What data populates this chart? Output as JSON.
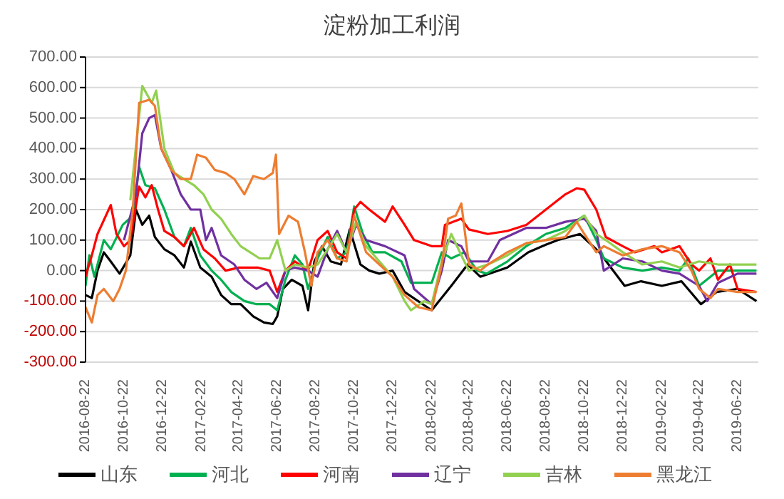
{
  "chart_data": {
    "type": "line",
    "title": "淀粉加工利润",
    "xlim": [
      "2016-08-22",
      "2019-07-25"
    ],
    "xticks": [
      "2016-08-22",
      "2016-10-22",
      "2016-12-22",
      "2017-02-22",
      "2017-04-22",
      "2017-06-22",
      "2017-08-22",
      "2017-10-22",
      "2017-12-22",
      "2018-02-22",
      "2018-04-22",
      "2018-06-22",
      "2018-08-22",
      "2018-10-22",
      "2018-12-22",
      "2019-02-22",
      "2019-04-22",
      "2019-06-22"
    ],
    "ylim": [
      -300,
      700
    ],
    "yticks": [
      {
        "value": -300,
        "label": "-300.00"
      },
      {
        "value": -200,
        "label": "-200.00"
      },
      {
        "value": -100,
        "label": "-100.00"
      },
      {
        "value": 0,
        "label": "0.00"
      },
      {
        "value": 100,
        "label": "100.00"
      },
      {
        "value": 200,
        "label": "200.00"
      },
      {
        "value": 300,
        "label": "300.00"
      },
      {
        "value": 400,
        "label": "400.00"
      },
      {
        "value": 500,
        "label": "500.00"
      },
      {
        "value": 600,
        "label": "600.00"
      },
      {
        "value": 700,
        "label": "700.00"
      }
    ],
    "grid": "y",
    "legend": "bottom",
    "line_style": "solid",
    "marker": "none",
    "series": [
      {
        "name": "山东",
        "color": "#000000",
        "x": [
          "2016-08-22",
          "2016-09-01",
          "2016-09-10",
          "2016-09-20",
          "2016-10-01",
          "2016-10-15",
          "2016-11-01",
          "2016-11-10",
          "2016-11-20",
          "2016-12-01",
          "2016-12-10",
          "2016-12-25",
          "2017-01-10",
          "2017-01-25",
          "2017-02-05",
          "2017-02-20",
          "2017-03-10",
          "2017-03-25",
          "2017-04-10",
          "2017-04-25",
          "2017-05-15",
          "2017-06-01",
          "2017-06-15",
          "2017-06-22",
          "2017-07-01",
          "2017-07-15",
          "2017-08-01",
          "2017-08-10",
          "2017-08-20",
          "2017-09-01",
          "2017-09-15",
          "2017-10-01",
          "2017-10-15",
          "2017-11-01",
          "2017-11-15",
          "2017-12-01",
          "2017-12-22",
          "2018-01-10",
          "2018-02-22",
          "2018-03-25",
          "2018-04-20",
          "2018-05-10",
          "2018-06-22",
          "2018-07-25",
          "2018-08-22",
          "2018-09-10",
          "2018-10-15",
          "2018-11-15",
          "2018-12-05",
          "2018-12-25",
          "2019-01-20",
          "2019-02-22",
          "2019-03-25",
          "2019-04-25",
          "2019-05-20",
          "2019-06-22",
          "2019-07-22"
        ],
        "values": [
          -80,
          -90,
          0,
          60,
          30,
          -10,
          50,
          200,
          150,
          180,
          110,
          70,
          50,
          10,
          95,
          10,
          -20,
          -80,
          -110,
          -110,
          -150,
          -170,
          -175,
          -150,
          -60,
          -30,
          -50,
          -130,
          30,
          80,
          30,
          20,
          135,
          20,
          0,
          -10,
          0,
          -70,
          -130,
          -50,
          20,
          -20,
          10,
          60,
          85,
          100,
          120,
          60,
          5,
          -50,
          -35,
          -50,
          -35,
          -110,
          -70,
          -60,
          -100
        ]
      },
      {
        "name": "河北",
        "color": "#00b050",
        "x": [
          "2016-08-22",
          "2016-08-28",
          "2016-09-05",
          "2016-09-20",
          "2016-10-01",
          "2016-10-20",
          "2016-11-05",
          "2016-11-15",
          "2016-11-25",
          "2016-12-10",
          "2016-12-25",
          "2017-01-10",
          "2017-01-25",
          "2017-02-05",
          "2017-02-20",
          "2017-03-10",
          "2017-03-25",
          "2017-04-10",
          "2017-05-01",
          "2017-05-20",
          "2017-06-10",
          "2017-06-22",
          "2017-07-05",
          "2017-07-20",
          "2017-08-01",
          "2017-08-10",
          "2017-08-25",
          "2017-09-10",
          "2017-09-25",
          "2017-10-10",
          "2017-10-22",
          "2017-11-05",
          "2017-11-20",
          "2017-12-10",
          "2018-01-05",
          "2018-01-20",
          "2018-02-22",
          "2018-03-10",
          "2018-03-25",
          "2018-04-15",
          "2018-05-05",
          "2018-05-20",
          "2018-06-22",
          "2018-07-22",
          "2018-08-22",
          "2018-09-22",
          "2018-10-22",
          "2018-11-10",
          "2018-11-22",
          "2018-12-22",
          "2019-01-22",
          "2019-02-22",
          "2019-03-22",
          "2019-04-05",
          "2019-04-22",
          "2019-05-10",
          "2019-05-22",
          "2019-06-22",
          "2019-07-22"
        ],
        "values": [
          -50,
          50,
          -20,
          100,
          70,
          150,
          180,
          340,
          280,
          270,
          200,
          110,
          80,
          140,
          50,
          0,
          -30,
          -70,
          -100,
          -110,
          -110,
          -130,
          -30,
          50,
          20,
          -60,
          40,
          110,
          40,
          60,
          210,
          120,
          60,
          60,
          30,
          -40,
          -40,
          60,
          40,
          60,
          0,
          -10,
          30,
          80,
          120,
          140,
          180,
          100,
          40,
          10,
          0,
          10,
          0,
          40,
          -50,
          -20,
          0,
          0,
          0
        ]
      },
      {
        "name": "河南",
        "color": "#ff0000",
        "x": [
          "2016-08-22",
          "2016-09-01",
          "2016-09-10",
          "2016-10-01",
          "2016-10-10",
          "2016-10-22",
          "2016-11-01",
          "2016-11-15",
          "2016-11-25",
          "2016-12-05",
          "2016-12-15",
          "2016-12-25",
          "2017-01-10",
          "2017-01-25",
          "2017-02-10",
          "2017-02-25",
          "2017-03-15",
          "2017-04-01",
          "2017-04-22",
          "2017-05-22",
          "2017-06-10",
          "2017-06-22",
          "2017-07-05",
          "2017-07-20",
          "2017-08-10",
          "2017-08-25",
          "2017-09-10",
          "2017-09-25",
          "2017-10-10",
          "2017-10-22",
          "2017-11-01",
          "2017-11-15",
          "2017-12-10",
          "2017-12-22",
          "2018-01-10",
          "2018-01-25",
          "2018-02-22",
          "2018-03-10",
          "2018-03-15",
          "2018-04-10",
          "2018-04-22",
          "2018-05-22",
          "2018-06-22",
          "2018-07-22",
          "2018-08-22",
          "2018-09-22",
          "2018-10-10",
          "2018-10-22",
          "2018-11-10",
          "2018-11-25",
          "2018-12-22",
          "2019-01-10",
          "2019-02-10",
          "2019-02-22",
          "2019-03-22",
          "2019-04-10",
          "2019-04-22",
          "2019-05-10",
          "2019-05-22",
          "2019-06-10",
          "2019-06-22",
          "2019-07-22"
        ],
        "values": [
          -20,
          50,
          120,
          215,
          120,
          80,
          100,
          275,
          240,
          280,
          200,
          130,
          110,
          80,
          140,
          70,
          40,
          0,
          10,
          10,
          0,
          -70,
          0,
          30,
          0,
          100,
          130,
          60,
          40,
          200,
          225,
          200,
          160,
          210,
          150,
          100,
          80,
          80,
          150,
          170,
          135,
          120,
          130,
          150,
          200,
          250,
          270,
          265,
          200,
          110,
          80,
          60,
          80,
          60,
          80,
          20,
          0,
          40,
          -30,
          20,
          -60,
          -70
        ]
      },
      {
        "name": "辽宁",
        "color": "#7030a0",
        "x": [
          "2016-10-22",
          "2016-11-10",
          "2016-11-20",
          "2016-12-01",
          "2016-12-10",
          "2016-12-20",
          "2017-01-05",
          "2017-01-20",
          "2017-02-05",
          "2017-02-20",
          "2017-03-01",
          "2017-03-10",
          "2017-03-25",
          "2017-04-15",
          "2017-05-01",
          "2017-05-20",
          "2017-06-05",
          "2017-06-22",
          "2017-07-05",
          "2017-07-20",
          "2017-08-10",
          "2017-08-25",
          "2017-09-10",
          "2017-09-25",
          "2017-10-10",
          "2017-10-25",
          "2017-11-10",
          "2017-12-10",
          "2018-01-10",
          "2018-01-25",
          "2018-02-22",
          "2018-03-10",
          "2018-03-20",
          "2018-04-10",
          "2018-04-22",
          "2018-05-22",
          "2018-06-10",
          "2018-07-22",
          "2018-08-22",
          "2018-09-22",
          "2018-10-22",
          "2018-11-10",
          "2018-11-22",
          "2018-12-22",
          "2019-01-22",
          "2019-02-22",
          "2019-03-22",
          "2019-04-22",
          "2019-05-05",
          "2019-05-22",
          "2019-06-22",
          "2019-07-22"
        ],
        "values": [
          100,
          250,
          450,
          500,
          510,
          400,
          330,
          250,
          200,
          200,
          100,
          140,
          50,
          20,
          -30,
          -60,
          -40,
          -90,
          0,
          10,
          0,
          -20,
          70,
          130,
          60,
          150,
          100,
          80,
          50,
          -60,
          -110,
          0,
          100,
          80,
          30,
          30,
          100,
          140,
          140,
          160,
          170,
          130,
          0,
          40,
          30,
          0,
          -10,
          -50,
          -100,
          -40,
          -10,
          -10
        ]
      },
      {
        "name": "吉林",
        "color": "#92d050",
        "x": [
          "2016-11-01",
          "2016-11-20",
          "2016-12-05",
          "2016-12-12",
          "2016-12-25",
          "2017-01-10",
          "2017-01-25",
          "2017-02-10",
          "2017-02-25",
          "2017-03-10",
          "2017-03-25",
          "2017-04-10",
          "2017-04-25",
          "2017-05-10",
          "2017-05-25",
          "2017-06-10",
          "2017-06-22",
          "2017-07-05",
          "2017-07-20",
          "2017-08-10",
          "2017-08-25",
          "2017-09-10",
          "2017-09-25",
          "2017-10-10",
          "2017-10-25",
          "2017-11-10",
          "2017-12-01",
          "2017-12-22",
          "2018-01-10",
          "2018-01-20",
          "2018-02-10",
          "2018-02-22",
          "2018-03-10",
          "2018-03-25",
          "2018-04-10",
          "2018-04-22",
          "2018-05-22",
          "2018-06-22",
          "2018-07-22",
          "2018-08-22",
          "2018-09-22",
          "2018-10-22",
          "2018-11-10",
          "2018-11-25",
          "2018-12-22",
          "2019-01-22",
          "2019-02-22",
          "2019-03-22",
          "2019-04-22",
          "2019-05-22",
          "2019-06-22",
          "2019-07-22"
        ],
        "values": [
          230,
          605,
          550,
          590,
          400,
          320,
          300,
          280,
          250,
          200,
          170,
          120,
          80,
          60,
          40,
          40,
          100,
          0,
          20,
          10,
          20,
          70,
          120,
          60,
          160,
          80,
          30,
          -20,
          -100,
          -130,
          -100,
          -110,
          30,
          120,
          50,
          0,
          20,
          50,
          90,
          100,
          130,
          180,
          120,
          100,
          60,
          20,
          30,
          10,
          30,
          20,
          20,
          20
        ]
      },
      {
        "name": "黑龙江",
        "color": "#ed7d31",
        "x": [
          "2016-08-22",
          "2016-09-01",
          "2016-09-10",
          "2016-09-20",
          "2016-10-05",
          "2016-10-15",
          "2016-10-25",
          "2016-11-05",
          "2016-11-15",
          "2016-12-01",
          "2016-12-10",
          "2016-12-20",
          "2017-01-05",
          "2017-01-20",
          "2017-02-05",
          "2017-02-15",
          "2017-03-01",
          "2017-03-15",
          "2017-04-01",
          "2017-04-15",
          "2017-05-01",
          "2017-05-15",
          "2017-06-01",
          "2017-06-15",
          "2017-06-20",
          "2017-06-25",
          "2017-07-10",
          "2017-07-25",
          "2017-08-05",
          "2017-08-15",
          "2017-08-25",
          "2017-09-10",
          "2017-09-25",
          "2017-10-10",
          "2017-10-22",
          "2017-11-10",
          "2017-12-01",
          "2017-12-22",
          "2018-01-10",
          "2018-02-01",
          "2018-02-22",
          "2018-03-10",
          "2018-03-20",
          "2018-04-01",
          "2018-04-10",
          "2018-04-22",
          "2018-05-10",
          "2018-05-22",
          "2018-06-22",
          "2018-07-22",
          "2018-08-22",
          "2018-09-22",
          "2018-10-10",
          "2018-10-22",
          "2018-11-10",
          "2018-11-22",
          "2018-12-22",
          "2019-01-22",
          "2019-02-22",
          "2019-03-22",
          "2019-04-10",
          "2019-04-22",
          "2019-05-10",
          "2019-05-22",
          "2019-06-22",
          "2019-07-22"
        ],
        "values": [
          -120,
          -170,
          -80,
          -60,
          -100,
          -60,
          0,
          200,
          550,
          560,
          540,
          400,
          330,
          300,
          300,
          380,
          370,
          330,
          320,
          300,
          250,
          310,
          300,
          320,
          380,
          120,
          180,
          160,
          60,
          -50,
          60,
          100,
          40,
          30,
          180,
          60,
          20,
          -20,
          -80,
          -120,
          -130,
          20,
          170,
          180,
          220,
          20,
          0,
          20,
          60,
          90,
          100,
          110,
          160,
          120,
          60,
          80,
          50,
          70,
          80,
          60,
          0,
          -60,
          -90,
          -60,
          -70,
          -70
        ]
      }
    ]
  }
}
